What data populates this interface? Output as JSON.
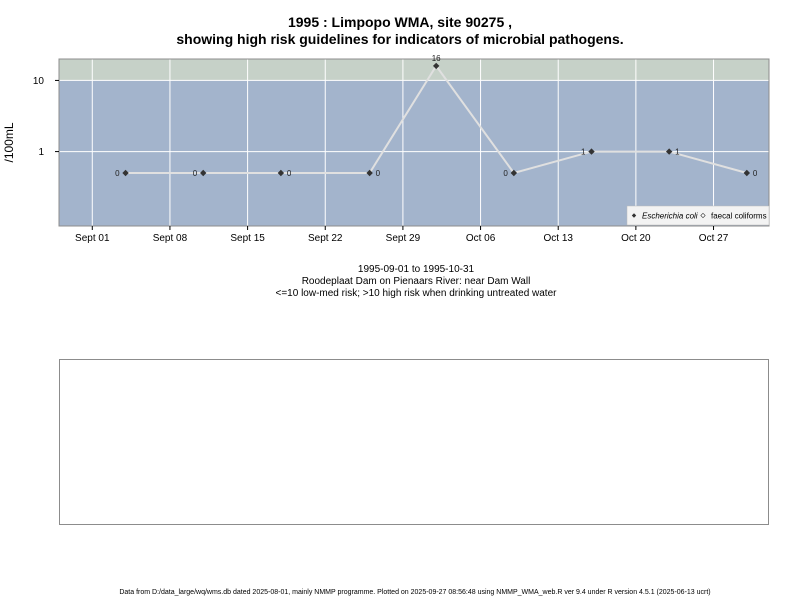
{
  "title": {
    "line1": "1995 : Limpopo WMA, site 90275 ,",
    "line2": "showing high risk guidelines for indicators of microbial pathogens."
  },
  "subtitle": {
    "line1": "1995-09-01 to 1995-10-31",
    "line2": "Roodeplaat Dam on Pienaars River: near Dam Wall",
    "line3": "<=10 low-med risk; >10 high risk when drinking untreated water"
  },
  "footer": "Data from D:/data_large/wq/wms.db dated 2025-08-01, mainly NMMP programme. Plotted on 2025-09-27 08:56:48 using NMMP_WMA_web.R ver 9.4 under R version 4.5.1 (2025-06-13 ucrt)",
  "colors": {
    "low_risk_band": "#a3b4cc",
    "high_risk_band": "#c6d1c8",
    "line": "#e0e0e0",
    "points": "#333333",
    "grid": "#ffffff"
  },
  "chart_data": {
    "type": "line",
    "ylabel": "/100mL",
    "y_scale": "log",
    "ylim": [
      0.09,
      20
    ],
    "xlim": [
      "1995-08-29",
      "1995-11-01"
    ],
    "y_ticks": [
      1,
      10
    ],
    "y_tick_labels": [
      "1",
      "10"
    ],
    "x_ticks": [
      "1995-09-01",
      "1995-09-08",
      "1995-09-15",
      "1995-09-22",
      "1995-09-29",
      "1995-10-06",
      "1995-10-13",
      "1995-10-20",
      "1995-10-27"
    ],
    "x_tick_labels": [
      "Sept 01",
      "Sept 08",
      "Sept 15",
      "Sept 22",
      "Sept 29",
      "Oct 06",
      "Oct 13",
      "Oct 20",
      "Oct 27"
    ],
    "guideline_value": 10,
    "grid": true,
    "legend_position": "bottom-right",
    "legend": [
      {
        "label": "Escherichia coli",
        "marker": "filled-diamond"
      },
      {
        "label": "faecal coliforms",
        "marker": "open-diamond"
      }
    ],
    "series": [
      {
        "name": "Escherichia coli",
        "x": [
          "1995-09-04",
          "1995-09-11",
          "1995-09-18",
          "1995-09-26",
          "1995-10-02",
          "1995-10-09",
          "1995-10-16",
          "1995-10-23",
          "1995-10-30"
        ],
        "y": [
          0.5,
          0.5,
          0.5,
          0.5,
          16,
          0.5,
          1,
          1,
          0.5
        ],
        "labels": [
          "0",
          "0",
          "0",
          "0",
          "16",
          "0",
          "1",
          "1",
          "0"
        ],
        "label_side": [
          "left",
          "left",
          "right",
          "right",
          "top",
          "left",
          "left",
          "right",
          "right"
        ]
      }
    ]
  }
}
